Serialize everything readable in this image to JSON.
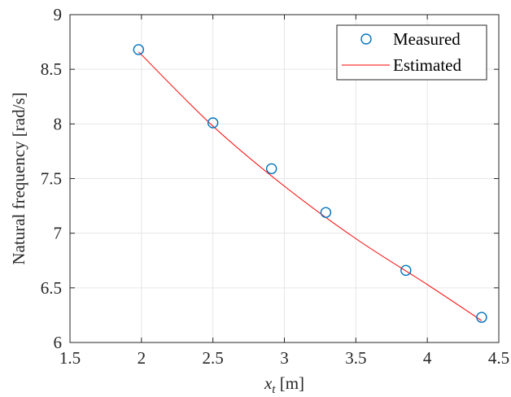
{
  "chart_data": {
    "type": "scatter",
    "title": "",
    "xlabel": {
      "var": "x",
      "sub": "t",
      "unit": " [m]"
    },
    "ylabel": "Natural frequency [rad/s]",
    "xlim": [
      1.5,
      4.5
    ],
    "ylim": [
      6,
      9
    ],
    "xticks": [
      1.5,
      2,
      2.5,
      3,
      3.5,
      4,
      4.5
    ],
    "xtick_labels": [
      "1.5",
      "2",
      "2.5",
      "3",
      "3.5",
      "4",
      "4.5"
    ],
    "yticks": [
      6,
      6.5,
      7,
      7.5,
      8,
      8.5,
      9
    ],
    "ytick_labels": [
      "6",
      "6.5",
      "7",
      "7.5",
      "8",
      "8.5",
      "9"
    ],
    "grid": true,
    "legend_position": "top-right",
    "series": [
      {
        "name": "Measured",
        "kind": "markers",
        "marker": "circle-open",
        "color": "#0072BD",
        "x": [
          1.98,
          2.5,
          2.91,
          3.29,
          3.85,
          4.38
        ],
        "y": [
          8.68,
          8.01,
          7.59,
          7.19,
          6.66,
          6.23
        ]
      },
      {
        "name": "Estimated",
        "kind": "line",
        "color": "#FF0000",
        "x": [
          1.98,
          2.5,
          3.0,
          3.5,
          4.0,
          4.38
        ],
        "y": [
          8.66,
          7.98,
          7.43,
          6.95,
          6.53,
          6.2
        ]
      }
    ]
  }
}
